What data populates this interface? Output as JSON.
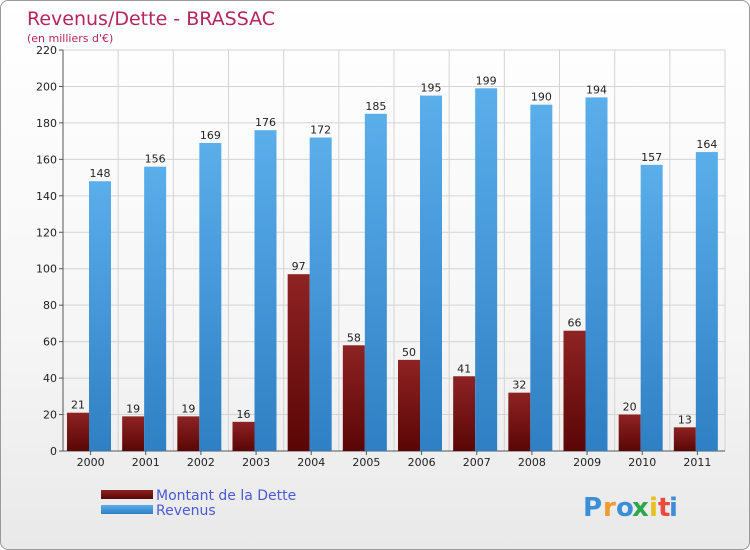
{
  "chart_data": {
    "type": "bar",
    "title": "Revenus/Dette - BRASSAC",
    "subtitle": "(en milliers d'€)",
    "categories": [
      "2000",
      "2001",
      "2002",
      "2003",
      "2004",
      "2005",
      "2006",
      "2007",
      "2008",
      "2009",
      "2010",
      "2011"
    ],
    "series": [
      {
        "name": "Montant de la Dette",
        "color": "#7a0c0c",
        "values": [
          21,
          19,
          19,
          16,
          97,
          58,
          50,
          41,
          32,
          66,
          20,
          13
        ]
      },
      {
        "name": "Revenus",
        "color": "#4fa3e0",
        "values": [
          148,
          156,
          169,
          176,
          172,
          185,
          195,
          199,
          190,
          194,
          157,
          164
        ]
      }
    ],
    "ylim": [
      0,
      220
    ],
    "yticks": [
      0,
      20,
      40,
      60,
      80,
      100,
      120,
      140,
      160,
      180,
      200,
      220
    ],
    "grid": true,
    "legend": "bottom-left",
    "xlabel": "",
    "ylabel": ""
  },
  "logo": {
    "letters": [
      "P",
      "r",
      "o",
      "x",
      "i",
      "t",
      "i"
    ],
    "colors": [
      "#3b8fd8",
      "#f29a2e",
      "#3b8fd8",
      "#2aa84a",
      "#e8c21c",
      "#e84c3d",
      "#3b8fd8"
    ]
  }
}
